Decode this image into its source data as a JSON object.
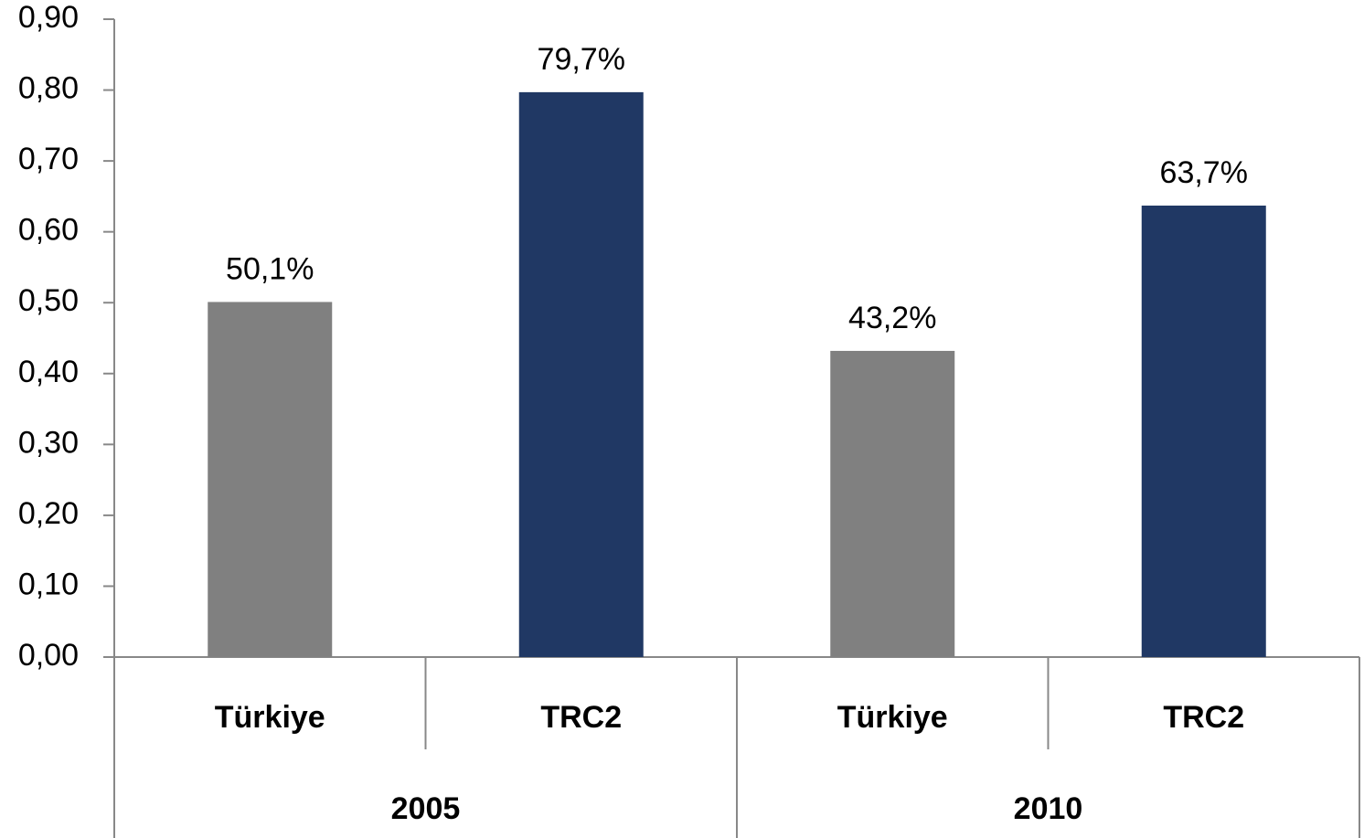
{
  "chart_data": {
    "type": "bar",
    "categories": [
      "Türkiye",
      "TRC2",
      "Türkiye",
      "TRC2"
    ],
    "groups": [
      "2005",
      "2010"
    ],
    "values": [
      0.501,
      0.797,
      0.432,
      0.637
    ],
    "value_labels": [
      "50,1%",
      "79,7%",
      "43,2%",
      "63,7%"
    ],
    "colors": [
      "#808080",
      "#203864",
      "#808080",
      "#203864"
    ],
    "ylim": [
      0,
      0.9
    ],
    "yticks": [
      {
        "value": 0,
        "label": "0,00"
      },
      {
        "value": 0.1,
        "label": "0,10"
      },
      {
        "value": 0.2,
        "label": "0,20"
      },
      {
        "value": 0.3,
        "label": "0,30"
      },
      {
        "value": 0.4,
        "label": "0,40"
      },
      {
        "value": 0.5,
        "label": "0,50"
      },
      {
        "value": 0.6,
        "label": "0,60"
      },
      {
        "value": 0.7,
        "label": "0,70"
      },
      {
        "value": 0.8,
        "label": "0,80"
      },
      {
        "value": 0.9,
        "label": "0,90"
      }
    ]
  }
}
